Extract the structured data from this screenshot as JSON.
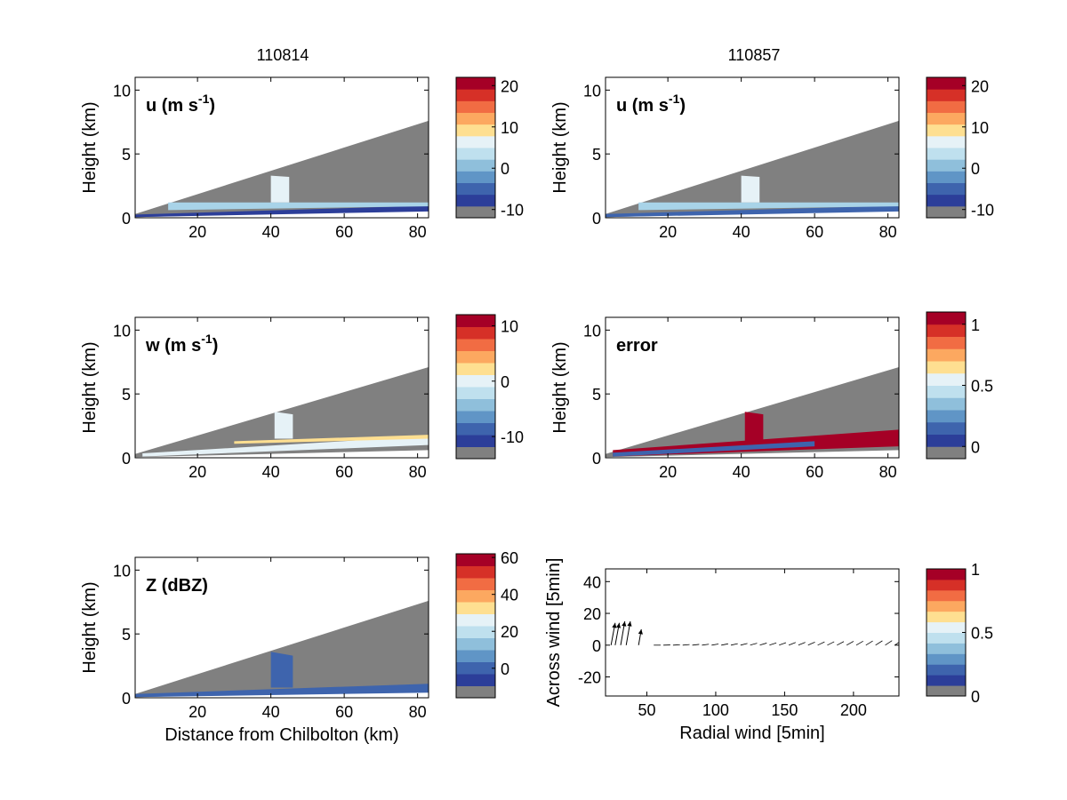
{
  "figure": {
    "col_titles": [
      "110814",
      "110857"
    ],
    "common_xlabel": "Distance from Chilbolton (km)"
  },
  "chart_data": [
    {
      "type": "heatmap",
      "id": "u-110814",
      "column_title": "110814",
      "label": "u (m s",
      "label_sup": "-1",
      "label_tail": ")",
      "ylabel": "Height (km)",
      "xlim": [
        3,
        83
      ],
      "ylim": [
        0,
        11
      ],
      "xticks": [
        20,
        40,
        60,
        80
      ],
      "yticks": [
        0,
        5,
        10
      ],
      "scan_top_km": [
        0.3,
        7.6
      ],
      "colorbar": {
        "ticks": [
          "20",
          "10",
          "0",
          "-10"
        ],
        "tick_values": [
          20,
          10,
          0,
          -10
        ],
        "range": [
          -12,
          22
        ]
      },
      "field": {
        "layers": [
          {
            "desc": "low",
            "color": "#2c3e99",
            "x": [
              3,
              83
            ],
            "y_bottom": [
              0.05,
              0.5
            ],
            "y_top": [
              0.25,
              0.95
            ]
          },
          {
            "desc": "upper",
            "color": "#a8d3e8",
            "x": [
              12,
              83
            ],
            "y_bottom": [
              0.6,
              0.9
            ],
            "y_top": [
              1.2,
              1.2
            ]
          },
          {
            "desc": "plume",
            "color": "#e6f2f7",
            "x": [
              40,
              45
            ],
            "y_bottom": [
              1.2,
              1.2
            ],
            "y_top": [
              3.3,
              3.2
            ]
          }
        ]
      }
    },
    {
      "type": "heatmap",
      "id": "u-110857",
      "column_title": "110857",
      "label": "u (m s",
      "label_sup": "-1",
      "label_tail": ")",
      "ylabel": "Height (km)",
      "xlim": [
        3,
        83
      ],
      "ylim": [
        0,
        11
      ],
      "xticks": [
        20,
        40,
        60,
        80
      ],
      "yticks": [
        0,
        5,
        10
      ],
      "scan_top_km": [
        0.3,
        7.6
      ],
      "colorbar": {
        "ticks": [
          "20",
          "10",
          "0",
          "-10"
        ],
        "tick_values": [
          20,
          10,
          0,
          -10
        ],
        "range": [
          -12,
          22
        ]
      },
      "field": {
        "layers": [
          {
            "desc": "low",
            "color": "#3e64ad",
            "x": [
              3,
              83
            ],
            "y_bottom": [
              0.05,
              0.5
            ],
            "y_top": [
              0.3,
              0.95
            ]
          },
          {
            "desc": "upper",
            "color": "#a8d3e8",
            "x": [
              12,
              83
            ],
            "y_bottom": [
              0.6,
              0.9
            ],
            "y_top": [
              1.2,
              1.2
            ]
          },
          {
            "desc": "plume",
            "color": "#e6f2f7",
            "x": [
              40,
              45
            ],
            "y_bottom": [
              1.2,
              1.2
            ],
            "y_top": [
              3.3,
              3.2
            ]
          }
        ]
      }
    },
    {
      "type": "heatmap",
      "id": "w-110814",
      "label": "w (m s",
      "label_sup": "-1",
      "label_tail": ")",
      "ylabel": "Height (km)",
      "xlim": [
        3,
        83
      ],
      "ylim": [
        0,
        11
      ],
      "xticks": [
        20,
        40,
        60,
        80
      ],
      "yticks": [
        0,
        5,
        10
      ],
      "scan_top_km": [
        0.3,
        7.1
      ],
      "colorbar": {
        "ticks": [
          "10",
          "0",
          "-10"
        ],
        "tick_values": [
          10,
          0,
          -10
        ],
        "range": [
          -14,
          12
        ]
      },
      "field": {
        "layers": [
          {
            "desc": "main",
            "color": "#e6f2f7",
            "x": [
              5,
              83
            ],
            "y_bottom": [
              0.1,
              1.0
            ],
            "y_top": [
              0.35,
              1.7
            ]
          },
          {
            "desc": "edge",
            "color": "#fedf91",
            "x": [
              30,
              83
            ],
            "y_bottom": [
              1.1,
              1.5
            ],
            "y_top": [
              1.3,
              1.8
            ]
          },
          {
            "desc": "plume",
            "color": "#e6f2f7",
            "x": [
              41,
              46
            ],
            "y_bottom": [
              1.5,
              1.5
            ],
            "y_top": [
              3.6,
              3.4
            ]
          }
        ]
      }
    },
    {
      "type": "heatmap",
      "id": "error-110857",
      "label": "error",
      "ylabel": "Height (km)",
      "xlim": [
        3,
        83
      ],
      "ylim": [
        0,
        11
      ],
      "xticks": [
        20,
        40,
        60,
        80
      ],
      "yticks": [
        0,
        5,
        10
      ],
      "scan_top_km": [
        0.3,
        7.1
      ],
      "colorbar": {
        "ticks": [
          "1",
          "0.5",
          "0"
        ],
        "tick_values": [
          1,
          0.5,
          0
        ],
        "range": [
          -0.1,
          1.1
        ]
      },
      "field": {
        "layers": [
          {
            "desc": "red",
            "color": "#a50026",
            "x": [
              5,
              83
            ],
            "y_bottom": [
              0.1,
              0.9
            ],
            "y_top": [
              0.6,
              2.2
            ]
          },
          {
            "desc": "blue",
            "color": "#3e64ad",
            "x": [
              5,
              60
            ],
            "y_bottom": [
              0.1,
              0.9
            ],
            "y_top": [
              0.4,
              1.3
            ]
          },
          {
            "desc": "plume",
            "color": "#a50026",
            "x": [
              41,
              46
            ],
            "y_bottom": [
              1.3,
              1.3
            ],
            "y_top": [
              3.6,
              3.4
            ]
          }
        ]
      }
    },
    {
      "type": "heatmap",
      "id": "Z-110814",
      "label": "Z (dBZ)",
      "ylabel": "Height (km)",
      "xlabel": "Distance from Chilbolton (km)",
      "xlim": [
        3,
        83
      ],
      "ylim": [
        0,
        11
      ],
      "xticks": [
        20,
        40,
        60,
        80
      ],
      "yticks": [
        0,
        5,
        10
      ],
      "scan_top_km": [
        0.3,
        7.6
      ],
      "colorbar": {
        "ticks": [
          "60",
          "40",
          "20",
          "0"
        ],
        "tick_values": [
          60,
          40,
          20,
          0
        ],
        "range": [
          -16,
          62
        ]
      },
      "field": {
        "layers": [
          {
            "desc": "main",
            "color": "#3e64ad",
            "x": [
              3,
              83
            ],
            "y_bottom": [
              0.05,
              0.4
            ],
            "y_top": [
              0.3,
              1.1
            ]
          },
          {
            "desc": "plume",
            "color": "#3e64ad",
            "x": [
              40,
              46
            ],
            "y_bottom": [
              0.8,
              0.8
            ],
            "y_top": [
              3.6,
              3.3
            ]
          }
        ]
      }
    },
    {
      "type": "scatter",
      "id": "wind-quiver",
      "xlabel": "Radial wind [5min]",
      "ylabel": "Across wind [5min]",
      "xlim": [
        20,
        233
      ],
      "ylim": [
        -32,
        48
      ],
      "xticks": [
        50,
        100,
        150,
        200
      ],
      "yticks": [
        -20,
        0,
        20,
        40
      ],
      "colorbar": {
        "ticks": [
          "1",
          "0.5",
          "0"
        ],
        "tick_values": [
          1,
          0.5,
          0
        ],
        "range": [
          0,
          1
        ]
      },
      "arrows_big": [
        {
          "x": 24,
          "y": 0,
          "u": 3,
          "v": 14
        },
        {
          "x": 27,
          "y": 0,
          "u": 3,
          "v": 14
        },
        {
          "x": 31,
          "y": 0,
          "u": 3,
          "v": 15
        },
        {
          "x": 35,
          "y": 0,
          "u": 3,
          "v": 15
        },
        {
          "x": 44,
          "y": 0,
          "u": 2,
          "v": 10
        }
      ],
      "arrows_small": {
        "x_start": 55,
        "x_end": 230,
        "step": 7,
        "dx": 5,
        "dy_start": 0,
        "dy_end": 3
      }
    }
  ],
  "colors": {
    "cmap": [
      "#808080",
      "#2c3e99",
      "#3e64ad",
      "#6095c6",
      "#8fbfdb",
      "#bfe0ee",
      "#e6f2f7",
      "#fedf91",
      "#fca860",
      "#f16c43",
      "#d63027",
      "#a50026"
    ],
    "scan_fill": "#808080",
    "background": "#ffffff"
  }
}
